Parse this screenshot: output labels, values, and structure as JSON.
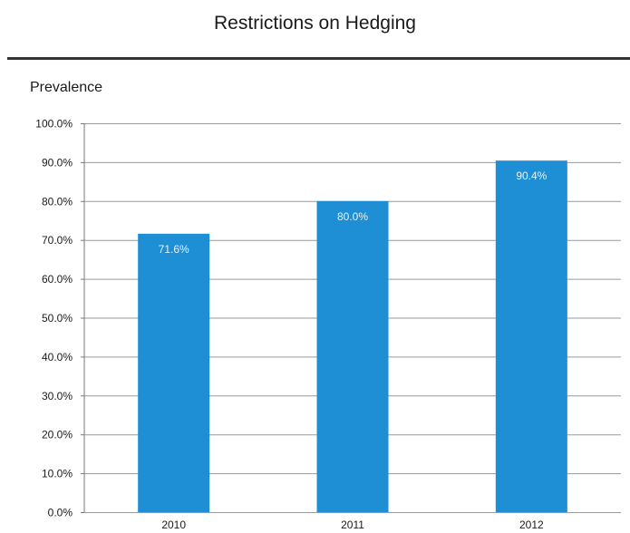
{
  "chart_data": {
    "type": "bar",
    "title": "Restrictions on Hedging",
    "subtitle": "Prevalence",
    "categories": [
      "2010",
      "2011",
      "2012"
    ],
    "values": [
      71.6,
      80.0,
      90.4
    ],
    "data_labels": [
      "71.6%",
      "80.0%",
      "90.4%"
    ],
    "ylim": [
      0,
      100
    ],
    "yticks": [
      0,
      10,
      20,
      30,
      40,
      50,
      60,
      70,
      80,
      90,
      100
    ],
    "ytick_labels": [
      "0.0%",
      "10.0%",
      "20.0%",
      "30.0%",
      "40.0%",
      "50.0%",
      "60.0%",
      "70.0%",
      "80.0%",
      "90.0%",
      "100.0%"
    ],
    "grid": true,
    "legend": "none",
    "bar_color": "#1f8fd5",
    "grid_color": "#9a9a9a"
  }
}
